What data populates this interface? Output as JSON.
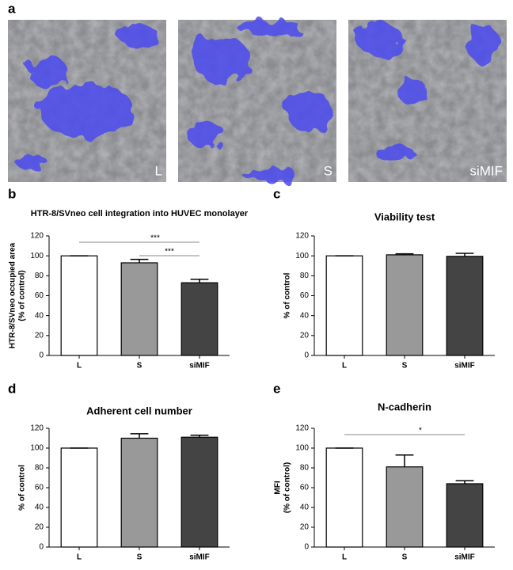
{
  "images": {
    "panel": "a",
    "labels": [
      "L",
      "S",
      "siMIF"
    ]
  },
  "chart_data": [
    {
      "type": "bar",
      "panel": "b",
      "title": "HTR-8/SVneo cell integration into HUVEC monolayer",
      "ylabel": [
        "HTR-8/SVneo occupied area",
        "(% of control)"
      ],
      "categories": [
        "L",
        "S",
        "siMIF"
      ],
      "values": [
        100,
        93,
        73
      ],
      "errors": [
        0,
        3.5,
        3.5
      ],
      "colors": [
        "#ffffff",
        "#999999",
        "#444444"
      ],
      "ylim": [
        0,
        120
      ],
      "yticks": [
        0,
        20,
        40,
        60,
        80,
        100,
        120
      ],
      "annotations": [
        {
          "text": "***",
          "between": [
            "L",
            "siMIF"
          ]
        },
        {
          "text": "***",
          "between": [
            "S",
            "siMIF"
          ]
        }
      ]
    },
    {
      "type": "bar",
      "panel": "c",
      "title": "Viability test",
      "ylabel": [
        "% of control"
      ],
      "categories": [
        "L",
        "S",
        "siMIF"
      ],
      "values": [
        100,
        101,
        99.5
      ],
      "errors": [
        0,
        1,
        3
      ],
      "colors": [
        "#ffffff",
        "#999999",
        "#444444"
      ],
      "ylim": [
        0,
        120
      ],
      "yticks": [
        0,
        20,
        40,
        60,
        80,
        100,
        120
      ]
    },
    {
      "type": "bar",
      "panel": "d",
      "title": "Adherent cell number",
      "ylabel": [
        "% of control"
      ],
      "categories": [
        "L",
        "S",
        "siMIF"
      ],
      "values": [
        100,
        110,
        111
      ],
      "errors": [
        0,
        4.5,
        2
      ],
      "colors": [
        "#ffffff",
        "#999999",
        "#444444"
      ],
      "ylim": [
        0,
        120
      ],
      "yticks": [
        0,
        20,
        40,
        60,
        80,
        100,
        120
      ]
    },
    {
      "type": "bar",
      "panel": "e",
      "title": "N-cadherin",
      "ylabel": [
        "MFI",
        "(% of control)"
      ],
      "categories": [
        "L",
        "S",
        "siMIF"
      ],
      "values": [
        100,
        81,
        64
      ],
      "errors": [
        0,
        12,
        3
      ],
      "colors": [
        "#ffffff",
        "#999999",
        "#444444"
      ],
      "ylim": [
        0,
        120
      ],
      "yticks": [
        0,
        20,
        40,
        60,
        80,
        100,
        120
      ],
      "annotations": [
        {
          "text": "*",
          "between": [
            "L",
            "siMIF"
          ]
        }
      ]
    }
  ]
}
